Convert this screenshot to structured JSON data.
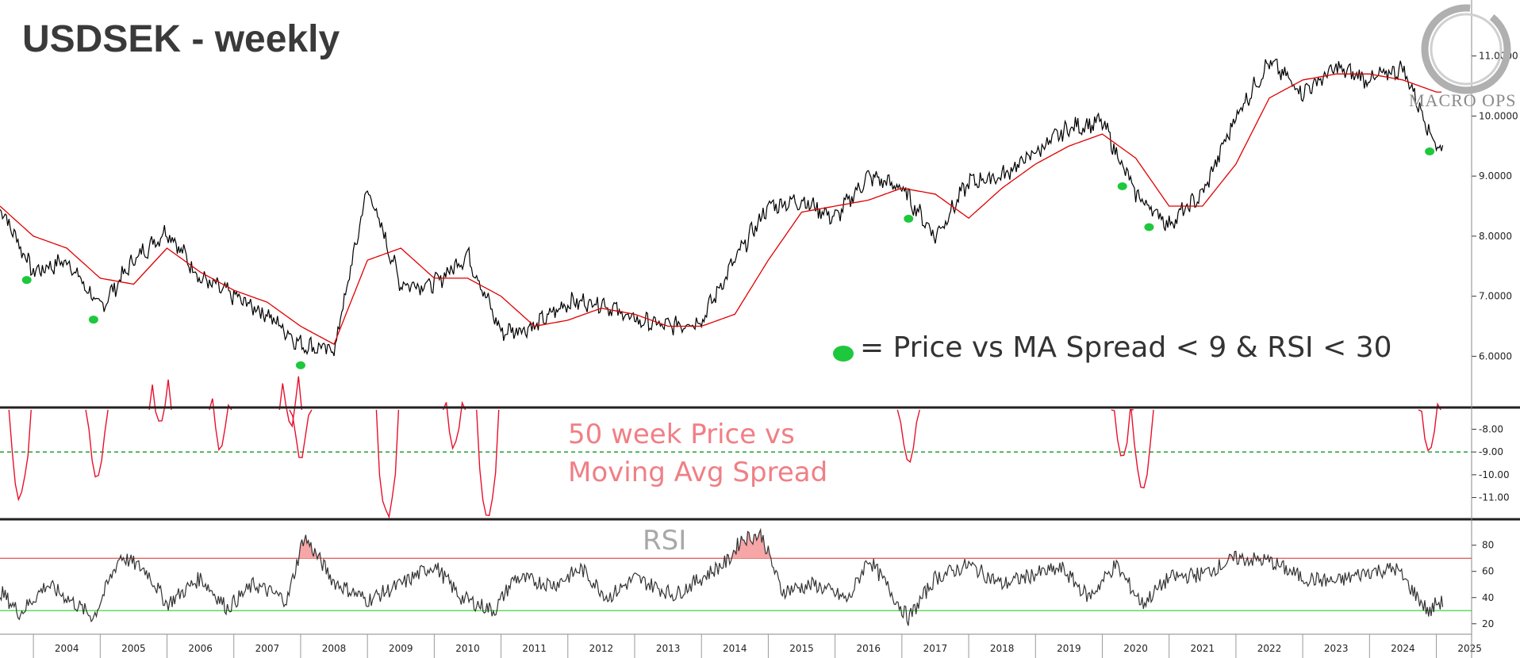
{
  "title": "USDSEK - weekly",
  "logo": {
    "text": "MACRO OPS"
  },
  "legend": {
    "text": "= Price vs MA Spread < 9 & RSI < 30",
    "marker_color": "#1ec83c"
  },
  "colors": {
    "price": "#000000",
    "ma": "#e00000",
    "spread": "#e8102c",
    "spread_threshold": "#1fa32f",
    "rsi": "#333333",
    "rsi_upper": "#e05050",
    "rsi_lower": "#3ed63e",
    "rsi_fill": "#f6a6a6"
  },
  "chart_data": [
    {
      "type": "line",
      "title": "USDSEK - weekly",
      "x_years": [
        2003.5,
        2004.0,
        2004.5,
        2005.0,
        2005.5,
        2006.0,
        2006.5,
        2007.0,
        2007.5,
        2008.0,
        2008.5,
        2009.0,
        2009.5,
        2010.0,
        2010.5,
        2011.0,
        2011.5,
        2012.0,
        2012.5,
        2013.0,
        2013.5,
        2014.0,
        2014.5,
        2015.0,
        2015.5,
        2016.0,
        2016.5,
        2017.0,
        2017.5,
        2018.0,
        2018.5,
        2019.0,
        2019.5,
        2020.0,
        2020.5,
        2021.0,
        2021.5,
        2022.0,
        2022.5,
        2023.0,
        2023.5,
        2024.0,
        2024.5,
        2025.0
      ],
      "series": [
        {
          "name": "Price",
          "values": [
            8.5,
            7.4,
            7.6,
            6.8,
            7.6,
            8.1,
            7.3,
            7.0,
            6.7,
            6.2,
            6.1,
            8.8,
            7.2,
            7.2,
            7.7,
            6.4,
            6.5,
            6.9,
            6.9,
            6.6,
            6.5,
            6.6,
            7.6,
            8.5,
            8.6,
            8.3,
            9.0,
            8.8,
            8.0,
            8.9,
            9.0,
            9.4,
            9.8,
            9.9,
            8.7,
            8.2,
            8.7,
            10.0,
            10.9,
            10.4,
            10.8,
            10.6,
            10.8,
            9.5
          ]
        },
        {
          "name": "Moving Average",
          "values": [
            8.5,
            8.0,
            7.8,
            7.3,
            7.2,
            7.8,
            7.4,
            7.1,
            6.9,
            6.5,
            6.2,
            7.6,
            7.8,
            7.3,
            7.3,
            7.0,
            6.5,
            6.6,
            6.8,
            6.7,
            6.5,
            6.5,
            6.7,
            7.6,
            8.4,
            8.5,
            8.6,
            8.8,
            8.7,
            8.3,
            8.8,
            9.2,
            9.5,
            9.7,
            9.3,
            8.5,
            8.5,
            9.2,
            10.3,
            10.6,
            10.7,
            10.7,
            10.6,
            10.4
          ]
        }
      ],
      "signals": [
        2003.9,
        2004.9,
        2008.0,
        2017.1,
        2020.3,
        2020.7,
        2024.9
      ],
      "ylabel": "",
      "yticks": [
        "6.0000",
        "7.0000",
        "8.0000",
        "9.0000",
        "10.0000",
        "11.0000"
      ],
      "ylim": [
        5.2,
        11.8
      ]
    },
    {
      "type": "line",
      "title": "50 week Price vs Moving Avg Spread",
      "title_lines": [
        "50 week Price vs",
        "Moving Avg Spread"
      ],
      "threshold": -9.0,
      "dips": [
        {
          "year": 2003.8,
          "min": -11.0
        },
        {
          "year": 2004.95,
          "min": -10.0
        },
        {
          "year": 2005.9,
          "min": -7.9
        },
        {
          "year": 2006.8,
          "min": -8.8
        },
        {
          "year": 2007.85,
          "min": -7.8
        },
        {
          "year": 2008.0,
          "min": -9.2
        },
        {
          "year": 2009.3,
          "min": -11.8
        },
        {
          "year": 2010.3,
          "min": -8.8
        },
        {
          "year": 2010.8,
          "min": -11.8
        },
        {
          "year": 2017.1,
          "min": -9.5
        },
        {
          "year": 2020.3,
          "min": -9.3
        },
        {
          "year": 2020.6,
          "min": -10.6
        },
        {
          "year": 2024.9,
          "min": -9.0
        }
      ],
      "yticks": [
        "-8.00",
        "-9.00",
        "-10.00",
        "-11.00"
      ],
      "ylim": [
        -11.85,
        -7.15
      ]
    },
    {
      "type": "line",
      "title": "RSI",
      "x_years": [
        2003.5,
        2003.8,
        2004.2,
        2004.5,
        2004.9,
        2005.3,
        2005.7,
        2006.0,
        2006.5,
        2006.9,
        2007.3,
        2007.8,
        2008.05,
        2008.5,
        2009.0,
        2009.5,
        2010.0,
        2010.4,
        2010.9,
        2011.2,
        2011.8,
        2012.2,
        2012.6,
        2013.0,
        2013.6,
        2014.0,
        2014.4,
        2014.6,
        2014.9,
        2015.2,
        2015.7,
        2016.2,
        2016.5,
        2017.1,
        2017.5,
        2018.0,
        2018.5,
        2019.0,
        2019.4,
        2019.8,
        2020.2,
        2020.6,
        2021.0,
        2021.5,
        2022.0,
        2022.5,
        2023.0,
        2023.5,
        2024.0,
        2024.4,
        2024.9,
        2025.0
      ],
      "values": [
        45,
        28,
        50,
        40,
        25,
        72,
        60,
        35,
        55,
        32,
        50,
        38,
        87,
        52,
        38,
        50,
        65,
        40,
        30,
        55,
        50,
        62,
        40,
        55,
        42,
        55,
        68,
        85,
        88,
        45,
        50,
        38,
        70,
        24,
        55,
        65,
        50,
        58,
        62,
        40,
        65,
        35,
        55,
        58,
        70,
        68,
        55,
        52,
        60,
        62,
        28,
        36
      ],
      "upper": 70,
      "lower": 30,
      "yticks": [
        "20",
        "40",
        "60",
        "80"
      ],
      "ylim": [
        12,
        98
      ]
    }
  ],
  "x_axis": {
    "years": [
      "2004",
      "2005",
      "2006",
      "2007",
      "2008",
      "2009",
      "2010",
      "2011",
      "2012",
      "2013",
      "2014",
      "2015",
      "2016",
      "2017",
      "2018",
      "2019",
      "2020",
      "2021",
      "2022",
      "2023",
      "2024",
      "2025"
    ]
  }
}
